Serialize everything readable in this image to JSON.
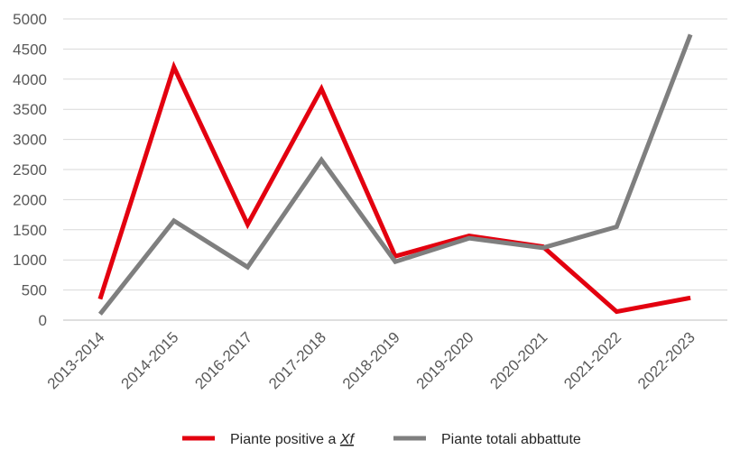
{
  "chart_data": {
    "type": "line",
    "title": "",
    "xlabel": "",
    "ylabel": "",
    "ylim": [
      0,
      5000
    ],
    "yticks": [
      0,
      500,
      1000,
      1500,
      2000,
      2500,
      3000,
      3500,
      4000,
      4500,
      5000
    ],
    "grid": "horizontal",
    "legend_position": "bottom",
    "categories": [
      "2013-2014",
      "2014-2015",
      "2016-2017",
      "2017-2018",
      "2018-2019",
      "2019-2020",
      "2020-2021",
      "2021-2022",
      "2022-2023"
    ],
    "series": [
      {
        "name": "Piante positive a Xf",
        "name_prefix": "Piante positive a ",
        "name_italic": "Xf",
        "color": "#e3000f",
        "values": [
          350,
          4200,
          1590,
          3840,
          1060,
          1400,
          1220,
          140,
          370
        ]
      },
      {
        "name": "Piante totali abbattute",
        "color": "#7f7f7f",
        "values": [
          100,
          1650,
          880,
          2660,
          970,
          1360,
          1200,
          1550,
          4740
        ]
      }
    ]
  }
}
